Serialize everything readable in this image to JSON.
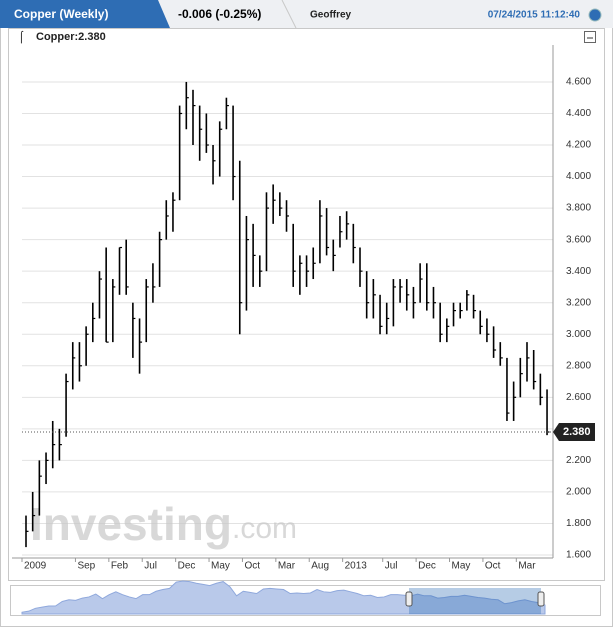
{
  "header": {
    "title": "Copper (Weekly)",
    "change": "-0.006 (-0.25%)",
    "user": "Geoffrey",
    "timestamp": "07/24/2015 11:12:40",
    "legend_label": "Copper:2.380"
  },
  "chart_data": {
    "type": "ohlc",
    "color": "#000000",
    "grid": true,
    "watermark": {
      "main": "Investing",
      "suffix": ".com"
    },
    "x": [
      "2009-01",
      "2009-02",
      "2009-03",
      "2009-04",
      "2009-05",
      "2009-06",
      "2009-07",
      "2009-08",
      "2009-09",
      "2009-10",
      "2009-11",
      "2009-12",
      "2010-01",
      "2010-02",
      "2010-03",
      "2010-04",
      "2010-05",
      "2010-06",
      "2010-07",
      "2010-08",
      "2010-09",
      "2010-10",
      "2010-11",
      "2010-12",
      "2011-01",
      "2011-02",
      "2011-03",
      "2011-04",
      "2011-05",
      "2011-06",
      "2011-07",
      "2011-08",
      "2011-09",
      "2011-10",
      "2011-11",
      "2011-12",
      "2012-01",
      "2012-02",
      "2012-03",
      "2012-04",
      "2012-05",
      "2012-06",
      "2012-07",
      "2012-08",
      "2012-09",
      "2012-10",
      "2012-11",
      "2012-12",
      "2013-01",
      "2013-02",
      "2013-03",
      "2013-04",
      "2013-05",
      "2013-06",
      "2013-07",
      "2013-08",
      "2013-09",
      "2013-10",
      "2013-11",
      "2013-12",
      "2014-01",
      "2014-02",
      "2014-03",
      "2014-04",
      "2014-05",
      "2014-06",
      "2014-07",
      "2014-08",
      "2014-09",
      "2014-10",
      "2014-11",
      "2014-12",
      "2015-01",
      "2015-02",
      "2015-03",
      "2015-04",
      "2015-05",
      "2015-06",
      "2015-07"
    ],
    "high": [
      1.85,
      2.0,
      2.2,
      2.25,
      2.45,
      2.4,
      2.75,
      2.95,
      2.95,
      3.05,
      3.2,
      3.4,
      3.55,
      3.35,
      3.55,
      3.6,
      3.2,
      3.1,
      3.35,
      3.45,
      3.65,
      3.85,
      3.9,
      4.45,
      4.6,
      4.55,
      4.45,
      4.4,
      4.2,
      4.35,
      4.5,
      4.45,
      4.1,
      3.75,
      3.7,
      3.5,
      3.9,
      3.95,
      3.9,
      3.85,
      3.7,
      3.5,
      3.5,
      3.55,
      3.85,
      3.8,
      3.6,
      3.75,
      3.78,
      3.7,
      3.55,
      3.4,
      3.35,
      3.25,
      3.2,
      3.35,
      3.35,
      3.35,
      3.3,
      3.45,
      3.45,
      3.3,
      3.2,
      3.1,
      3.2,
      3.2,
      3.28,
      3.25,
      3.15,
      3.1,
      3.05,
      2.95,
      2.85,
      2.7,
      2.85,
      2.95,
      2.9,
      2.75,
      2.65
    ],
    "low": [
      1.65,
      1.75,
      1.85,
      2.05,
      2.15,
      2.2,
      2.35,
      2.65,
      2.7,
      2.8,
      2.95,
      3.1,
      2.95,
      2.95,
      3.25,
      3.25,
      2.85,
      2.75,
      2.95,
      3.2,
      3.3,
      3.6,
      3.65,
      3.85,
      4.3,
      4.2,
      4.1,
      4.15,
      3.95,
      4.0,
      4.3,
      3.85,
      3.0,
      3.15,
      3.3,
      3.3,
      3.4,
      3.7,
      3.75,
      3.65,
      3.3,
      3.25,
      3.3,
      3.35,
      3.45,
      3.5,
      3.4,
      3.55,
      3.6,
      3.45,
      3.3,
      3.1,
      3.1,
      3.0,
      3.0,
      3.05,
      3.2,
      3.15,
      3.1,
      3.2,
      3.15,
      3.1,
      2.95,
      2.95,
      3.05,
      3.1,
      3.15,
      3.1,
      3.0,
      2.95,
      2.85,
      2.8,
      2.45,
      2.45,
      2.6,
      2.7,
      2.65,
      2.55,
      2.36
    ],
    "close": [
      1.75,
      1.85,
      2.1,
      2.2,
      2.3,
      2.3,
      2.7,
      2.85,
      2.8,
      3.0,
      3.1,
      3.35,
      2.95,
      3.3,
      3.55,
      3.3,
      3.1,
      2.95,
      3.3,
      3.3,
      3.6,
      3.75,
      3.85,
      4.4,
      4.5,
      4.45,
      4.3,
      4.2,
      4.1,
      4.3,
      4.45,
      4.0,
      3.2,
      3.6,
      3.5,
      3.4,
      3.8,
      3.85,
      3.8,
      3.75,
      3.4,
      3.45,
      3.4,
      3.45,
      3.75,
      3.55,
      3.5,
      3.65,
      3.7,
      3.55,
      3.4,
      3.2,
      3.25,
      3.05,
      3.1,
      3.3,
      3.3,
      3.25,
      3.2,
      3.35,
      3.2,
      3.2,
      3.0,
      3.05,
      3.15,
      3.15,
      3.25,
      3.15,
      3.05,
      3.0,
      2.9,
      2.85,
      2.5,
      2.6,
      2.75,
      2.85,
      2.7,
      2.6,
      2.38
    ],
    "ylim": [
      1.6,
      4.8
    ],
    "yticks": [
      {
        "value": 1.6,
        "label": "1.600"
      },
      {
        "value": 1.8,
        "label": "1.800"
      },
      {
        "value": 2.0,
        "label": "2.000"
      },
      {
        "value": 2.2,
        "label": "2.200"
      },
      {
        "value": 2.4,
        "label": "2.400"
      },
      {
        "value": 2.6,
        "label": "2.600"
      },
      {
        "value": 2.8,
        "label": "2.800"
      },
      {
        "value": 3.0,
        "label": "3.000"
      },
      {
        "value": 3.2,
        "label": "3.200"
      },
      {
        "value": 3.4,
        "label": "3.400"
      },
      {
        "value": 3.6,
        "label": "3.600"
      },
      {
        "value": 3.8,
        "label": "3.800"
      },
      {
        "value": 4.0,
        "label": "4.000"
      },
      {
        "value": 4.2,
        "label": "4.200"
      },
      {
        "value": 4.4,
        "label": "4.400"
      },
      {
        "value": 4.6,
        "label": "4.600"
      }
    ],
    "xticks": [
      {
        "value": "2009-01",
        "label": "2009"
      },
      {
        "value": "2009-09",
        "label": "Sep"
      },
      {
        "value": "2010-02",
        "label": "Feb"
      },
      {
        "value": "2010-07",
        "label": "Jul"
      },
      {
        "value": "2010-12",
        "label": "Dec"
      },
      {
        "value": "2011-05",
        "label": "May"
      },
      {
        "value": "2011-10",
        "label": "Oct"
      },
      {
        "value": "2012-03",
        "label": "Mar"
      },
      {
        "value": "2012-08",
        "label": "Aug"
      },
      {
        "value": "2013-01",
        "label": "2013"
      },
      {
        "value": "2013-07",
        "label": "Jul"
      },
      {
        "value": "2013-12",
        "label": "Dec"
      },
      {
        "value": "2014-05",
        "label": "May"
      },
      {
        "value": "2014-10",
        "label": "Oct"
      },
      {
        "value": "2015-03",
        "label": "Mar"
      }
    ],
    "last_price": {
      "value": 2.38,
      "label": "2.380"
    }
  }
}
